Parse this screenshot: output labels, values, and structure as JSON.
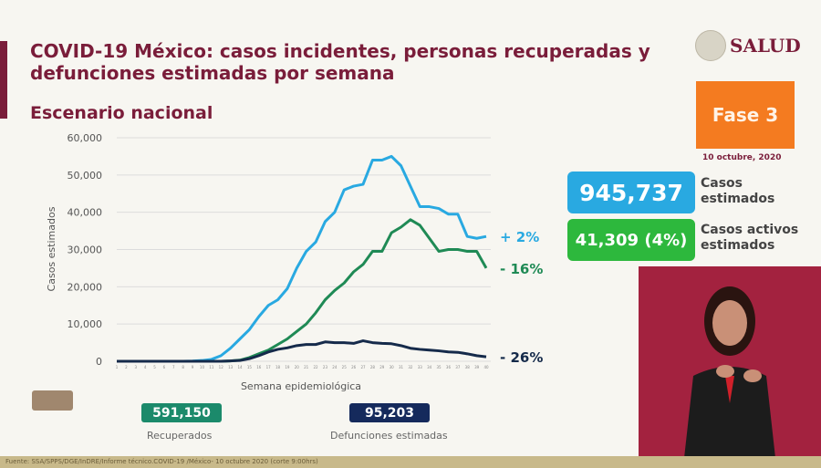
{
  "header": {
    "title": "COVID-19 México: casos incidentes, personas recuperadas y defunciones estimadas por semana",
    "subtitle": "Escenario nacional",
    "logo_text": "SALUD"
  },
  "phase": {
    "label": "Fase 3",
    "date": "10 octubre, 2020",
    "color": "#f47b20"
  },
  "kpis": [
    {
      "value": "945,737",
      "label_line1": "Casos",
      "label_line2": "estimados",
      "color": "#29a9e1"
    },
    {
      "value": "41,309 (4%)",
      "label_line1": "Casos activos",
      "label_line2": "estimados",
      "color": "#2db83d"
    }
  ],
  "stats": [
    {
      "value": "591,150",
      "label": "Recuperados",
      "color": "#1b8a6b"
    },
    {
      "value": "95,203",
      "label": "Defunciones estimadas",
      "color": "#152a5c"
    }
  ],
  "footer": "Fuente: SSA/SPPS/DGE/InDRE/Informe técnico.COVID-19 /México- 10 octubre 2020 (corte 9:00hrs)",
  "chart_data": {
    "type": "line",
    "xlabel": "Semana epidemiológica",
    "ylabel": "Casos estimados",
    "ylim": [
      0,
      60000
    ],
    "yticks": [
      "0",
      "10,000",
      "20,000",
      "30,000",
      "40,000",
      "50,000",
      "60,000"
    ],
    "x": [
      1,
      2,
      3,
      4,
      5,
      6,
      7,
      8,
      9,
      10,
      11,
      12,
      13,
      14,
      15,
      16,
      17,
      18,
      19,
      20,
      21,
      22,
      23,
      24,
      25,
      26,
      27,
      28,
      29,
      30,
      31,
      32,
      33,
      34,
      35,
      36,
      37,
      38,
      39,
      40
    ],
    "grid": true,
    "series": [
      {
        "color": "#29a9e1",
        "end_label": "+ 2%",
        "values": [
          0,
          0,
          0,
          0,
          0,
          0,
          0,
          0,
          50,
          200,
          500,
          1500,
          3500,
          6000,
          8500,
          12000,
          15000,
          16500,
          19500,
          25000,
          29500,
          32000,
          37500,
          40000,
          46000,
          47000,
          47500,
          54000,
          54000,
          55000,
          52500,
          47000,
          41500,
          41500,
          41000,
          39500,
          39500,
          33500,
          33000,
          33500
        ]
      },
      {
        "color": "#1f8a55",
        "end_label": "- 16%",
        "values": [
          0,
          0,
          0,
          0,
          0,
          0,
          0,
          0,
          0,
          0,
          0,
          0,
          100,
          300,
          1000,
          2000,
          3000,
          4500,
          6000,
          8000,
          10000,
          13000,
          16500,
          19000,
          21000,
          24000,
          26000,
          29500,
          29500,
          34500,
          36000,
          38000,
          36500,
          33000,
          29500,
          30000,
          30000,
          29500,
          29500,
          25000
        ]
      },
      {
        "color": "#152a4a",
        "end_label": "- 26%",
        "values": [
          0,
          0,
          0,
          0,
          0,
          0,
          0,
          0,
          0,
          0,
          0,
          0,
          100,
          200,
          700,
          1500,
          2500,
          3200,
          3600,
          4200,
          4500,
          4500,
          5200,
          5000,
          5000,
          4800,
          5500,
          5000,
          4800,
          4700,
          4200,
          3500,
          3200,
          3000,
          2800,
          2500,
          2400,
          2000,
          1500,
          1200
        ]
      }
    ]
  }
}
